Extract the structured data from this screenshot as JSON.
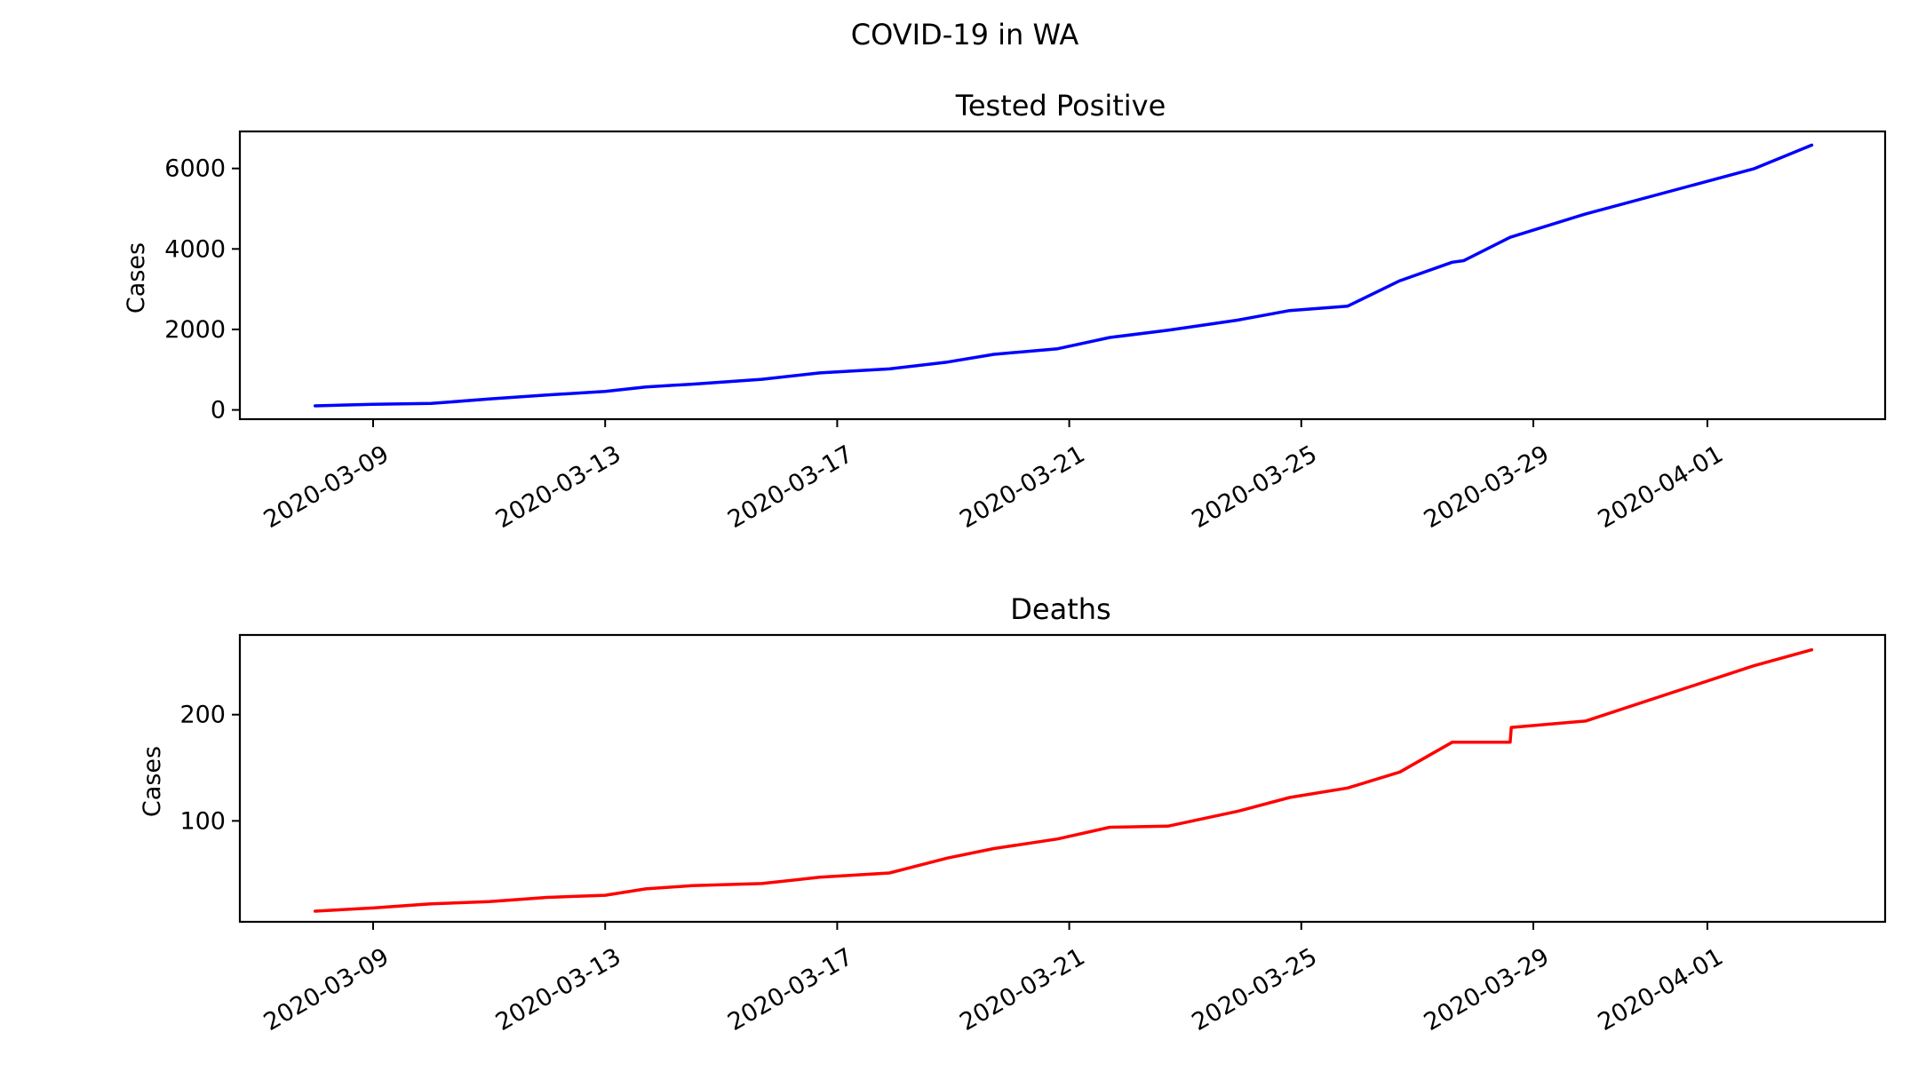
{
  "figure": {
    "suptitle": "COVID-19 in WA"
  },
  "chart_data": [
    {
      "type": "line",
      "title": "Tested Positive",
      "xlabel": "",
      "ylabel": "Cases",
      "color": "#0000ff",
      "x_tick_labels": [
        "2020-03-09",
        "2020-03-13",
        "2020-03-17",
        "2020-03-21",
        "2020-03-25",
        "2020-03-29",
        "2020-04-01"
      ],
      "y_tick_labels": [
        "0",
        "2000",
        "4000",
        "6000"
      ],
      "ylim": [
        -230,
        6920
      ],
      "yticks": [
        0,
        2000,
        4000,
        6000
      ],
      "series": [
        {
          "name": "Tested Positive",
          "x": [
            "2020-03-08",
            "2020-03-09",
            "2020-03-10",
            "2020-03-11",
            "2020-03-12",
            "2020-03-13",
            "2020-03-13.7",
            "2020-03-14.5",
            "2020-03-15.7",
            "2020-03-16.7",
            "2020-03-17.9",
            "2020-03-18.9",
            "2020-03-19.7",
            "2020-03-20.8",
            "2020-03-21.7",
            "2020-03-22.7",
            "2020-03-23.9",
            "2020-03-24.8",
            "2020-03-25.8",
            "2020-03-26.7",
            "2020-03-27.6",
            "2020-03-27.8",
            "2020-03-28.6",
            "2020-03-29.9",
            "2020-04-01.8",
            "2020-04-02.8"
          ],
          "y": [
            100,
            140,
            160,
            270,
            370,
            460,
            570,
            640,
            760,
            920,
            1020,
            1190,
            1380,
            1520,
            1800,
            1980,
            2230,
            2470,
            2580,
            3210,
            3670,
            3710,
            4290,
            4870,
            5990,
            6580
          ]
        }
      ]
    },
    {
      "type": "line",
      "title": "Deaths",
      "xlabel": "",
      "ylabel": "Cases",
      "color": "#ff0000",
      "x_tick_labels": [
        "2020-03-09",
        "2020-03-13",
        "2020-03-17",
        "2020-03-21",
        "2020-03-25",
        "2020-03-29",
        "2020-04-01"
      ],
      "y_tick_labels": [
        "100",
        "200"
      ],
      "ylim": [
        5,
        275
      ],
      "yticks": [
        100,
        200
      ],
      "series": [
        {
          "name": "Deaths",
          "x": [
            "2020-03-08",
            "2020-03-09",
            "2020-03-10",
            "2020-03-11",
            "2020-03-12",
            "2020-03-13",
            "2020-03-13.7",
            "2020-03-14.5",
            "2020-03-15.7",
            "2020-03-16.7",
            "2020-03-17.9",
            "2020-03-18.9",
            "2020-03-19.7",
            "2020-03-20.8",
            "2020-03-21.7",
            "2020-03-22.7",
            "2020-03-23.9",
            "2020-03-24.8",
            "2020-03-25.8",
            "2020-03-26.7",
            "2020-03-27.6",
            "2020-03-28.6",
            "2020-03-28.62",
            "2020-03-29.9",
            "2020-04-01.8",
            "2020-04-02.8"
          ],
          "y": [
            15,
            18,
            22,
            24,
            28,
            30,
            36,
            39,
            41,
            47,
            51,
            65,
            74,
            83,
            94,
            95,
            109,
            122,
            131,
            146,
            174,
            174,
            188,
            194,
            246,
            261
          ]
        }
      ]
    }
  ]
}
